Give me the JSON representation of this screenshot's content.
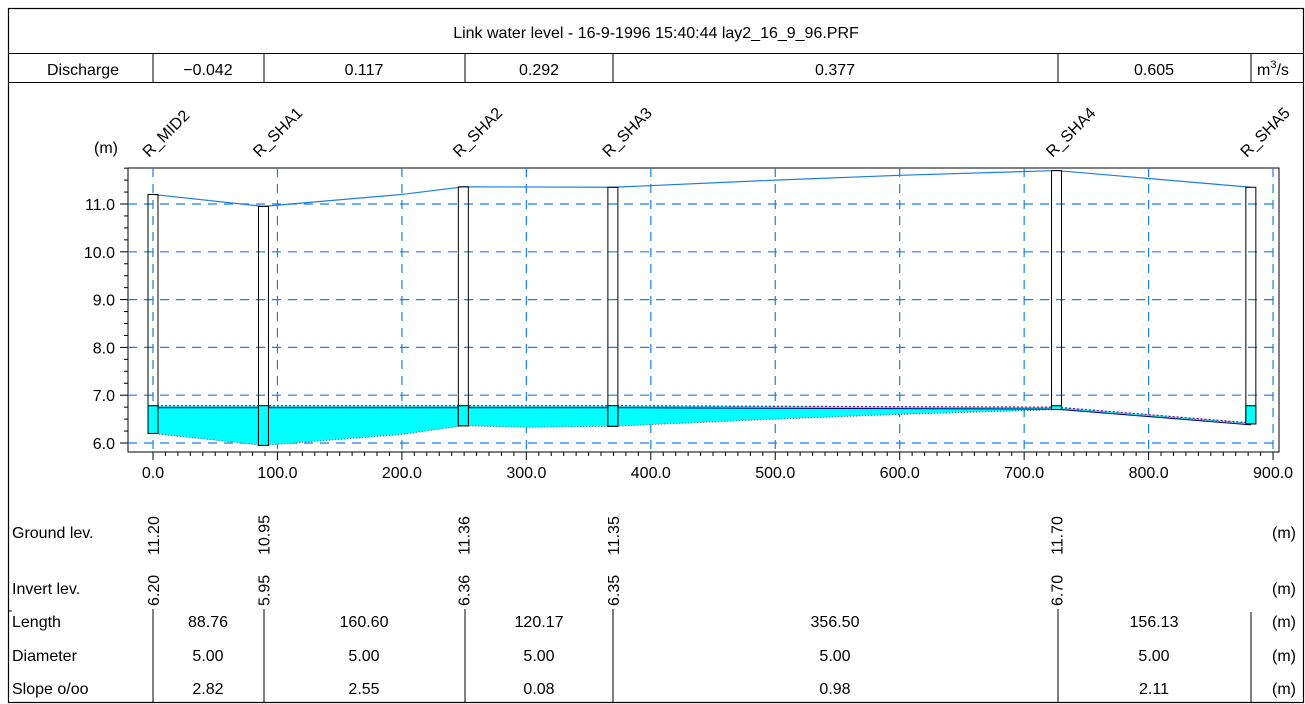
{
  "title": "Link water level - 16-9-1996 15:40:44 lay2_16_9_96.PRF",
  "discharge": {
    "label": "Discharge",
    "values": [
      "−0.042",
      "0.117",
      "0.292",
      "0.377",
      "0.605"
    ],
    "unit": "m3/s",
    "unit_base": "m",
    "unit_sup": "3",
    "unit_tail": "/s"
  },
  "chart_data": {
    "type": "line",
    "title": "Link water level - 16-9-1996 15:40:44 lay2_16_9_96.PRF",
    "ylabel": "(m)",
    "xlabel": "",
    "xlim": [
      0,
      900
    ],
    "ylim": [
      5.9,
      11.9
    ],
    "grid": true,
    "x_ticks": [
      0,
      100,
      200,
      300,
      400,
      500,
      600,
      700,
      800,
      900
    ],
    "x_tick_labels": [
      "0.0",
      "100.0",
      "200.0",
      "300.0",
      "400.0",
      "500.0",
      "600.0",
      "700.0",
      "800.0",
      "900.0"
    ],
    "y_ticks": [
      6,
      7,
      8,
      9,
      10,
      11
    ],
    "y_tick_labels": [
      "6.0",
      "7.0",
      "8.0",
      "9.0",
      "10.0",
      "11.0"
    ],
    "nodes": [
      {
        "name": "R_MID2",
        "x": 0.0,
        "ground": 11.2,
        "invert": 6.2
      },
      {
        "name": "R_SHA1",
        "x": 88.76,
        "ground": 10.95,
        "invert": 5.95
      },
      {
        "name": "R_SHA2",
        "x": 249.36,
        "ground": 11.36,
        "invert": 6.36
      },
      {
        "name": "R_SHA3",
        "x": 369.53,
        "ground": 11.35,
        "invert": 6.35
      },
      {
        "name": "R_SHA4",
        "x": 726.03,
        "ground": 11.7,
        "invert": 6.7
      },
      {
        "name": "R_SHA5",
        "x": 882.16,
        "ground": 11.35,
        "invert": 6.4
      }
    ],
    "series": [
      {
        "name": "Ground",
        "color": "#1a7fe0",
        "x": [
          0,
          88.76,
          200,
          249.36,
          369.53,
          500,
          600,
          726.03,
          882.16
        ],
        "y": [
          11.2,
          10.95,
          11.2,
          11.36,
          11.35,
          11.5,
          11.6,
          11.7,
          11.35
        ]
      },
      {
        "name": "Water level",
        "color": "#c0005a",
        "x": [
          0,
          88.76,
          249.36,
          369.53,
          726.03,
          882.16
        ],
        "y": [
          6.78,
          6.78,
          6.78,
          6.78,
          6.75,
          6.42
        ]
      },
      {
        "name": "Invert",
        "color": "#555555",
        "x": [
          0,
          88.76,
          200,
          249.36,
          300,
          369.53,
          500,
          600,
          726.03,
          882.16
        ],
        "y": [
          6.2,
          5.95,
          6.18,
          6.36,
          6.33,
          6.35,
          6.5,
          6.6,
          6.7,
          6.4
        ]
      }
    ],
    "water_color": "#00ffff",
    "grid_color": "#1a7fe0"
  },
  "table": {
    "ground_label": "Ground lev.",
    "invert_label": "Invert lev.",
    "unit": "(m)",
    "ground_values": [
      "11.20",
      "10.95",
      "11.36",
      "11.35",
      "11.70"
    ],
    "invert_values": [
      "6.20",
      "5.95",
      "6.36",
      "6.35",
      "6.70"
    ],
    "rows": [
      {
        "label": "Length",
        "values": [
          "88.76",
          "160.60",
          "120.17",
          "356.50",
          "156.13"
        ],
        "unit": "(m)"
      },
      {
        "label": "Diameter",
        "values": [
          "5.00",
          "5.00",
          "5.00",
          "5.00",
          "5.00"
        ],
        "unit": "(m)"
      },
      {
        "label": "Slope o/oo",
        "values": [
          "2.82",
          "2.55",
          "0.08",
          "0.98",
          "2.11"
        ],
        "unit": "(m)"
      }
    ]
  }
}
